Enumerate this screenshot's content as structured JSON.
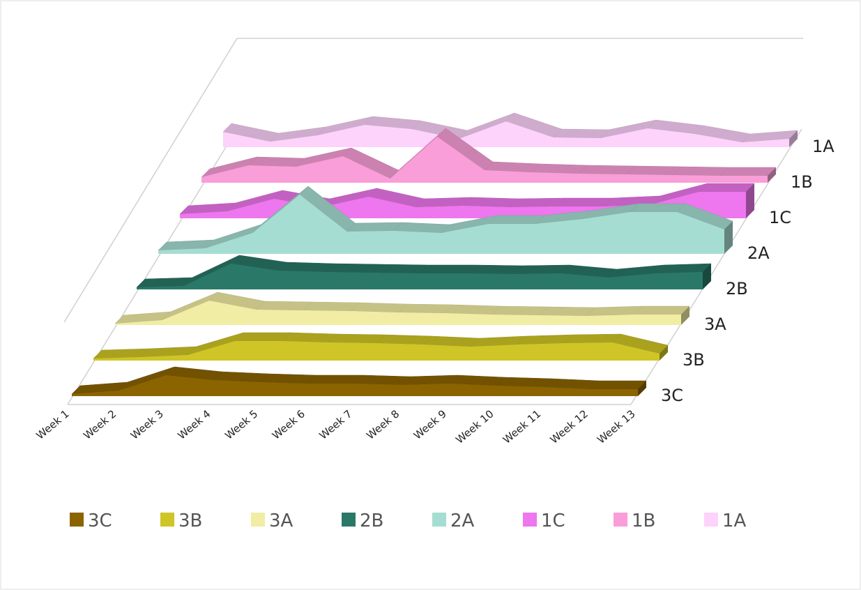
{
  "chart_data": {
    "type": "area3d",
    "categories": [
      "Week 1",
      "Week 2",
      "Week 3",
      "Week 4",
      "Week 5",
      "Week 6",
      "Week 7",
      "Week 8",
      "Week 9",
      "Week 10",
      "Week 11",
      "Week 12",
      "Week 13"
    ],
    "series": [
      {
        "name": "3C",
        "color": "#8b6400",
        "values": [
          3,
          8,
          30,
          23,
          20,
          18,
          18,
          16,
          18,
          15,
          13,
          10,
          10
        ]
      },
      {
        "name": "3B",
        "color": "#cfc526",
        "values": [
          3,
          5,
          8,
          28,
          28,
          26,
          25,
          23,
          20,
          23,
          25,
          26,
          10
        ]
      },
      {
        "name": "3A",
        "color": "#f1eda4",
        "values": [
          2,
          7,
          35,
          22,
          21,
          20,
          18,
          17,
          15,
          14,
          13,
          15,
          15
        ]
      },
      {
        "name": "2B",
        "color": "#2a7868",
        "values": [
          3,
          5,
          37,
          27,
          25,
          24,
          23,
          23,
          22,
          23,
          17,
          23,
          25
        ]
      },
      {
        "name": "2A",
        "color": "#a6ddd2",
        "values": [
          5,
          8,
          30,
          85,
          32,
          33,
          30,
          43,
          43,
          50,
          60,
          60,
          35
        ]
      },
      {
        "name": "1C",
        "color": "#ee76ee",
        "values": [
          6,
          10,
          28,
          16,
          31,
          16,
          18,
          16,
          17,
          17,
          20,
          38,
          38
        ]
      },
      {
        "name": "1B",
        "color": "#f99ed8",
        "values": [
          8,
          25,
          23,
          38,
          6,
          66,
          18,
          15,
          13,
          12,
          11,
          10,
          10
        ]
      },
      {
        "name": "1A",
        "color": "#fdd2fb",
        "values": [
          22,
          8,
          17,
          32,
          26,
          12,
          37,
          14,
          13,
          27,
          19,
          7,
          12
        ]
      }
    ],
    "legend": "bottom"
  }
}
